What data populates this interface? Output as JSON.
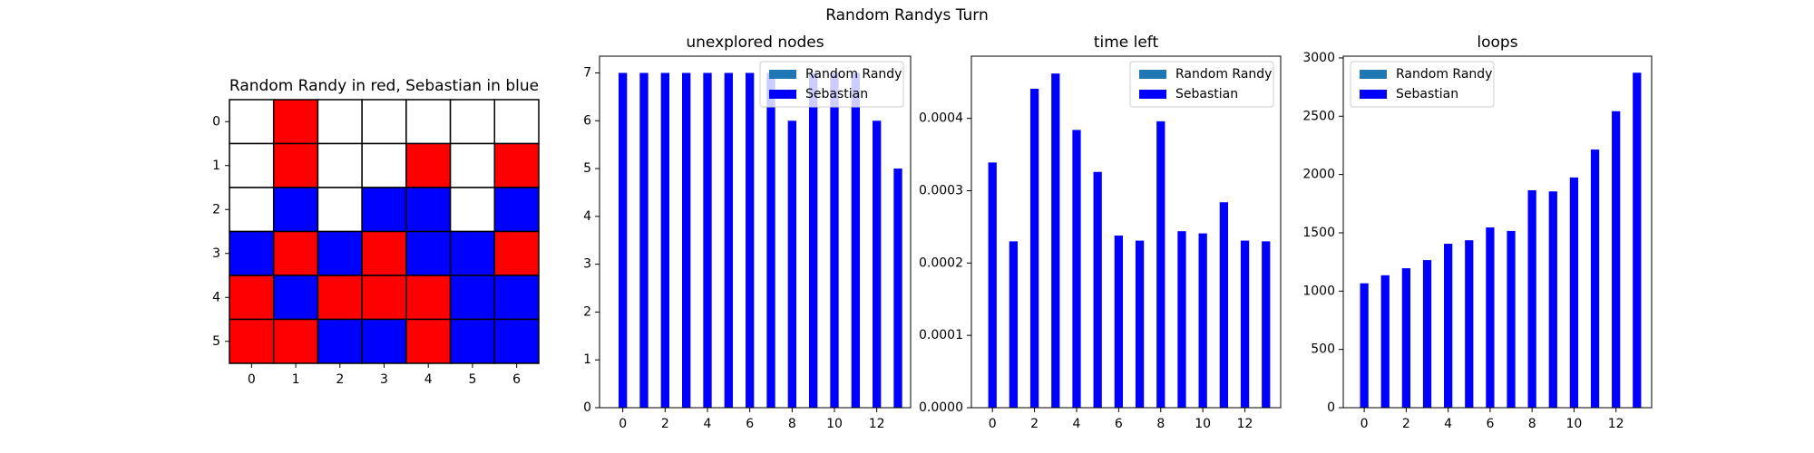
{
  "title": "Random Randys Turn",
  "chart_data": [
    {
      "type": "board",
      "title": "Random Randy in red, Sebastian in blue",
      "cells": [
        [
          "#ffffff",
          "#ff0000",
          "#ffffff",
          "#ffffff",
          "#ffffff",
          "#ffffff",
          "#ffffff"
        ],
        [
          "#ffffff",
          "#ff0000",
          "#ffffff",
          "#ffffff",
          "#ff0000",
          "#ffffff",
          "#ff0000"
        ],
        [
          "#ffffff",
          "#0000ff",
          "#ffffff",
          "#0000ff",
          "#0000ff",
          "#ffffff",
          "#0000ff"
        ],
        [
          "#0000ff",
          "#ff0000",
          "#0000ff",
          "#ff0000",
          "#0000ff",
          "#0000ff",
          "#ff0000"
        ],
        [
          "#ff0000",
          "#0000ff",
          "#ff0000",
          "#ff0000",
          "#ff0000",
          "#0000ff",
          "#0000ff"
        ],
        [
          "#ff0000",
          "#ff0000",
          "#0000ff",
          "#0000ff",
          "#ff0000",
          "#0000ff",
          "#0000ff"
        ]
      ],
      "xticks": [
        0,
        1,
        2,
        3,
        4,
        5,
        6
      ],
      "yticks": [
        0,
        1,
        2,
        3,
        4,
        5
      ]
    },
    {
      "type": "bar",
      "title": "unexplored nodes",
      "legend": "upper right",
      "x": [
        0,
        1,
        2,
        3,
        4,
        5,
        6,
        7,
        8,
        9,
        10,
        11,
        12,
        13
      ],
      "series": [
        {
          "name": "Random Randy",
          "color": "#1f77b4",
          "values": [
            0,
            0,
            0,
            0,
            0,
            0,
            0,
            0,
            0,
            0,
            0,
            0,
            0,
            0
          ]
        },
        {
          "name": "Sebastian",
          "color": "#0000ff",
          "values": [
            7,
            7,
            7,
            7,
            7,
            7,
            7,
            7,
            6,
            7,
            7,
            7,
            6,
            5
          ]
        }
      ],
      "xlim": [
        -1.1,
        13.6
      ],
      "xticks": [
        0,
        2,
        4,
        6,
        8,
        10,
        12
      ],
      "ylim": [
        0,
        7.35
      ],
      "yticks": [
        0,
        1,
        2,
        3,
        4,
        5,
        6,
        7
      ]
    },
    {
      "type": "bar",
      "title": "time left",
      "legend": "upper right",
      "x": [
        0,
        1,
        2,
        3,
        4,
        5,
        6,
        7,
        8,
        9,
        10,
        11,
        12,
        13
      ],
      "series": [
        {
          "name": "Random Randy",
          "color": "#1f77b4",
          "values": [
            0,
            0,
            0,
            0,
            0,
            0,
            0,
            0,
            0,
            0,
            0,
            0,
            0,
            0
          ]
        },
        {
          "name": "Sebastian",
          "color": "#0000ff",
          "values": [
            0.000339,
            0.00023,
            0.000441,
            0.000462,
            0.000384,
            0.000326,
            0.000238,
            0.000231,
            0.000396,
            0.000244,
            0.000241,
            0.000284,
            0.000231,
            0.00023
          ]
        }
      ],
      "xlim": [
        -1.0,
        13.7
      ],
      "xticks": [
        0,
        2,
        4,
        6,
        8,
        10,
        12
      ],
      "ylim": [
        0,
        0.000486
      ],
      "yticks": [
        {
          "value": 0,
          "label": "0.0000"
        },
        {
          "value": 0.0001,
          "label": "0.0001"
        },
        {
          "value": 0.0002,
          "label": "0.0002"
        },
        {
          "value": 0.0003,
          "label": "0.0003"
        },
        {
          "value": 0.0004,
          "label": "0.0004"
        }
      ]
    },
    {
      "type": "bar",
      "title": "loops",
      "legend": "upper left",
      "x": [
        0,
        1,
        2,
        3,
        4,
        5,
        6,
        7,
        8,
        9,
        10,
        11,
        12,
        13
      ],
      "series": [
        {
          "name": "Random Randy",
          "color": "#1f77b4",
          "values": [
            0,
            0,
            0,
            0,
            0,
            0,
            0,
            0,
            0,
            0,
            0,
            0,
            0,
            0
          ]
        },
        {
          "name": "Sebastian",
          "color": "#0000ff",
          "values": [
            1067,
            1136,
            1196,
            1266,
            1406,
            1436,
            1546,
            1516,
            1865,
            1855,
            1975,
            2214,
            2543,
            2873
          ]
        }
      ],
      "xlim": [
        -1.0,
        13.7
      ],
      "xticks": [
        0,
        2,
        4,
        6,
        8,
        10,
        12
      ],
      "ylim": [
        0,
        3015
      ],
      "yticks": [
        0,
        500,
        1000,
        1500,
        2000,
        2500,
        3000
      ]
    }
  ]
}
